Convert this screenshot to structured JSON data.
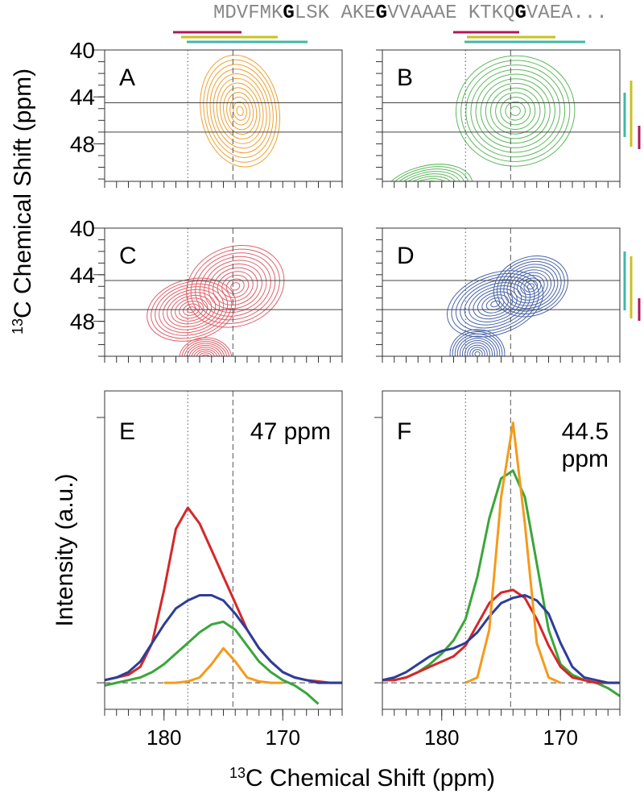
{
  "figure": {
    "sequence": [
      "MDVFMK",
      "G",
      "LSK AKE",
      "G",
      "VVAAAE KTKQ",
      "G",
      "VAEA..."
    ],
    "y_label": {
      "superscript": "13",
      "text": "C Chemical Shift (ppm)"
    },
    "x_label": {
      "superscript": "13",
      "text": "C Chemical Shift (ppm)"
    }
  },
  "chart_data": [
    {
      "type": "contour",
      "panel_label": "A",
      "xlim": [
        185,
        165
      ],
      "ylim": [
        40,
        51.2
      ],
      "yticks": [
        40,
        44,
        48
      ],
      "xminor_ticks": [
        185,
        184,
        183,
        182,
        181,
        180,
        179,
        178,
        177,
        176,
        175,
        174,
        173,
        172,
        171,
        170,
        169,
        168,
        167,
        166,
        165
      ],
      "yminor_ticks": [
        40,
        41,
        42,
        43,
        44,
        45,
        46,
        47,
        48,
        49,
        50,
        51
      ],
      "vlines": [
        {
          "value": 178,
          "style": "dotted"
        },
        {
          "value": 174.2,
          "style": "dashed"
        }
      ],
      "hlines": [
        {
          "value": 44.5,
          "style": "solid"
        },
        {
          "value": 47,
          "style": "solid"
        }
      ],
      "series": [
        {
          "color": "#f0a030",
          "levels": 12,
          "x": [
            173.6
          ],
          "y": [
            45.2
          ],
          "wx": [
            3.3
          ],
          "wy": [
            4.8
          ],
          "angle": [
            -10
          ]
        }
      ]
    },
    {
      "type": "contour",
      "panel_label": "B",
      "xlim": [
        185,
        165
      ],
      "ylim": [
        40,
        51.2
      ],
      "xminor_ticks": [
        185,
        184,
        183,
        182,
        181,
        180,
        179,
        178,
        177,
        176,
        175,
        174,
        173,
        172,
        171,
        170,
        169,
        168,
        167,
        166,
        165
      ],
      "yminor_ticks": [
        40,
        41,
        42,
        43,
        44,
        45,
        46,
        47,
        48,
        49,
        50,
        51
      ],
      "vlines": [
        {
          "value": 178,
          "style": "dotted"
        },
        {
          "value": 174.2,
          "style": "dashed"
        }
      ],
      "hlines": [
        {
          "value": 44.5,
          "style": "solid"
        },
        {
          "value": 47,
          "style": "solid"
        }
      ],
      "series": [
        {
          "color": "#5cb85c",
          "levels": 12,
          "x": [
            173.8,
            181.3
          ],
          "y": [
            45.2,
            52.2
          ],
          "wx": [
            5,
            4
          ],
          "wy": [
            4.7,
            2.3
          ],
          "angle": [
            -5,
            -15
          ]
        }
      ]
    },
    {
      "type": "contour",
      "panel_label": "C",
      "xlim": [
        185,
        165
      ],
      "ylim": [
        40,
        51
      ],
      "xminor_ticks": [
        185,
        184,
        183,
        182,
        181,
        180,
        179,
        178,
        177,
        176,
        175,
        174,
        173,
        172,
        171,
        170,
        169,
        168,
        167,
        166,
        165
      ],
      "yminor_ticks": [
        40,
        41,
        42,
        43,
        44,
        45,
        46,
        47,
        48,
        49,
        50,
        51
      ],
      "yticks": [
        40,
        44,
        48
      ],
      "vlines": [
        {
          "value": 178,
          "style": "dotted"
        },
        {
          "value": 174.2,
          "style": "dashed"
        }
      ],
      "hlines": [
        {
          "value": 44.5,
          "style": "solid"
        },
        {
          "value": 47,
          "style": "solid"
        }
      ],
      "series": [
        {
          "color": "#e0606a",
          "levels": 11,
          "x": [
            177.7,
            174,
            176.5
          ],
          "y": [
            47,
            45,
            51.2
          ],
          "wx": [
            3.8,
            4.2,
            2.2
          ],
          "wy": [
            2.6,
            3.4,
            1.8
          ],
          "angle": [
            -15,
            -20,
            0
          ]
        }
      ]
    },
    {
      "type": "contour",
      "panel_label": "D",
      "xlim": [
        185,
        165
      ],
      "ylim": [
        40,
        51
      ],
      "xminor_ticks": [
        185,
        184,
        183,
        182,
        181,
        180,
        179,
        178,
        177,
        176,
        175,
        174,
        173,
        172,
        171,
        170,
        169,
        168,
        167,
        166,
        165
      ],
      "yminor_ticks": [
        40,
        41,
        42,
        43,
        44,
        45,
        46,
        47,
        48,
        49,
        50,
        51
      ],
      "vlines": [
        {
          "value": 178,
          "style": "dotted"
        },
        {
          "value": 174.2,
          "style": "dashed"
        }
      ],
      "hlines": [
        {
          "value": 44.5,
          "style": "solid"
        },
        {
          "value": 47,
          "style": "solid"
        }
      ],
      "series": [
        {
          "color": "#4a64a8",
          "levels": 11,
          "x": [
            175.5,
            172.5,
            177
          ],
          "y": [
            46.5,
            45,
            50.8
          ],
          "wx": [
            4.2,
            3.2,
            2.3
          ],
          "wy": [
            2.6,
            2.5,
            2.1
          ],
          "angle": [
            -20,
            -20,
            0
          ]
        }
      ]
    },
    {
      "type": "line",
      "panel_label": "E",
      "annotation": [
        "47 ppm"
      ],
      "ylabel": "Intensity (a.u.)",
      "xlim": [
        185,
        165
      ],
      "ylim": [
        -0.1,
        1.1
      ],
      "xticks": [
        180,
        170
      ],
      "ytick_marks": [
        0,
        1
      ],
      "xminor_ticks": [
        185,
        184,
        183,
        182,
        181,
        180,
        179,
        178,
        177,
        176,
        175,
        174,
        173,
        172,
        171,
        170,
        169,
        168,
        167,
        166,
        165
      ],
      "vlines": [
        {
          "value": 178,
          "style": "dotted"
        },
        {
          "value": 174.2,
          "style": "dashed"
        }
      ],
      "hlines": [
        {
          "value": 0,
          "style": "dashed"
        }
      ],
      "x": [
        185,
        184,
        183,
        182,
        181,
        180,
        179,
        178,
        177,
        176,
        175,
        174,
        173,
        172,
        171,
        170,
        169,
        168,
        167,
        166,
        165
      ],
      "series": [
        {
          "color": "#d62728",
          "values": [
            0.01,
            0.02,
            0.03,
            0.06,
            0.15,
            0.35,
            0.58,
            0.66,
            0.6,
            0.5,
            0.4,
            0.3,
            0.2,
            0.13,
            0.08,
            0.04,
            0.02,
            0.01,
            0.005,
            0,
            0
          ]
        },
        {
          "color": "#2c3e99",
          "values": [
            0.01,
            0.02,
            0.04,
            0.08,
            0.15,
            0.22,
            0.28,
            0.31,
            0.33,
            0.33,
            0.31,
            0.26,
            0.2,
            0.13,
            0.08,
            0.04,
            0.02,
            0.01,
            0,
            0,
            0
          ]
        },
        {
          "color": "#3aa63a",
          "values": [
            -0.01,
            0,
            0.01,
            0.02,
            0.04,
            0.07,
            0.11,
            0.15,
            0.19,
            0.22,
            0.23,
            0.2,
            0.14,
            0.08,
            0.04,
            0.01,
            -0.01,
            -0.04,
            -0.08,
            null,
            null
          ]
        },
        {
          "color": "#f59a1b",
          "values": [
            null,
            null,
            null,
            null,
            null,
            0,
            0,
            0.005,
            0.02,
            0.07,
            0.13,
            0.08,
            0.02,
            0.005,
            0,
            0,
            null,
            null,
            null,
            null,
            null
          ]
        }
      ]
    },
    {
      "type": "line",
      "panel_label": "F",
      "annotation": [
        "44.5",
        "ppm"
      ],
      "xlim": [
        185,
        165
      ],
      "ylim": [
        -0.1,
        1.1
      ],
      "xticks": [
        180,
        170
      ],
      "ytick_marks": [
        0,
        1
      ],
      "xminor_ticks": [
        185,
        184,
        183,
        182,
        181,
        180,
        179,
        178,
        177,
        176,
        175,
        174,
        173,
        172,
        171,
        170,
        169,
        168,
        167,
        166,
        165
      ],
      "vlines": [
        {
          "value": 178,
          "style": "dotted"
        },
        {
          "value": 174.2,
          "style": "dashed"
        }
      ],
      "hlines": [
        {
          "value": 0,
          "style": "dashed"
        }
      ],
      "x": [
        185,
        184,
        183,
        182,
        181,
        180,
        179,
        178,
        177,
        176,
        175,
        174,
        173,
        172,
        171,
        170,
        169,
        168,
        167,
        166,
        165
      ],
      "series": [
        {
          "color": "#3aa63a",
          "values": [
            0.01,
            0.01,
            0.02,
            0.04,
            0.07,
            0.11,
            0.16,
            0.24,
            0.4,
            0.62,
            0.77,
            0.8,
            0.7,
            0.45,
            0.2,
            0.07,
            0.03,
            0.01,
            0,
            -0.02,
            -0.05
          ]
        },
        {
          "color": "#d62728",
          "values": [
            0.01,
            0.01,
            0.02,
            0.04,
            0.06,
            0.08,
            0.1,
            0.14,
            0.22,
            0.3,
            0.34,
            0.35,
            0.32,
            0.24,
            0.14,
            0.06,
            0.02,
            0.01,
            0,
            0,
            0
          ]
        },
        {
          "color": "#2c3e99",
          "values": [
            0.01,
            0.02,
            0.04,
            0.07,
            0.1,
            0.12,
            0.13,
            0.15,
            0.19,
            0.25,
            0.3,
            0.32,
            0.33,
            0.31,
            0.26,
            0.15,
            0.06,
            0.02,
            0.01,
            0,
            0
          ]
        },
        {
          "color": "#f59a1b",
          "values": [
            null,
            null,
            null,
            null,
            null,
            null,
            null,
            0,
            0.02,
            0.2,
            0.7,
            0.98,
            0.6,
            0.15,
            0.02,
            0,
            null,
            null,
            null,
            null,
            null
          ]
        }
      ]
    }
  ]
}
